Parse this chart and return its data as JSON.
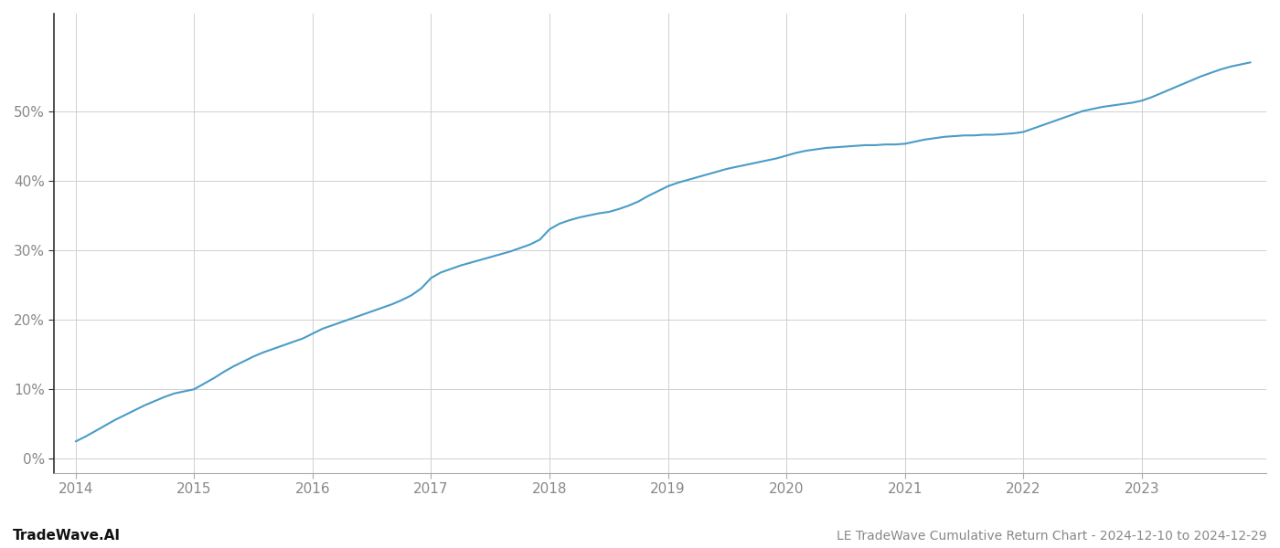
{
  "title": "LE TradeWave Cumulative Return Chart - 2024-12-10 to 2024-12-29",
  "watermark": "TradeWave.AI",
  "line_color": "#4a9cc7",
  "background_color": "#ffffff",
  "grid_color": "#d0d0d0",
  "x_values": [
    2014.0,
    2014.083,
    2014.167,
    2014.25,
    2014.333,
    2014.417,
    2014.5,
    2014.583,
    2014.667,
    2014.75,
    2014.833,
    2014.917,
    2015.0,
    2015.083,
    2015.167,
    2015.25,
    2015.333,
    2015.417,
    2015.5,
    2015.583,
    2015.667,
    2015.75,
    2015.833,
    2015.917,
    2016.0,
    2016.083,
    2016.167,
    2016.25,
    2016.333,
    2016.417,
    2016.5,
    2016.583,
    2016.667,
    2016.75,
    2016.833,
    2016.917,
    2017.0,
    2017.083,
    2017.167,
    2017.25,
    2017.333,
    2017.417,
    2017.5,
    2017.583,
    2017.667,
    2017.75,
    2017.833,
    2017.917,
    2018.0,
    2018.083,
    2018.167,
    2018.25,
    2018.333,
    2018.417,
    2018.5,
    2018.583,
    2018.667,
    2018.75,
    2018.833,
    2018.917,
    2019.0,
    2019.083,
    2019.167,
    2019.25,
    2019.333,
    2019.417,
    2019.5,
    2019.583,
    2019.667,
    2019.75,
    2019.833,
    2019.917,
    2020.0,
    2020.083,
    2020.167,
    2020.25,
    2020.333,
    2020.417,
    2020.5,
    2020.583,
    2020.667,
    2020.75,
    2020.833,
    2020.917,
    2021.0,
    2021.083,
    2021.167,
    2021.25,
    2021.333,
    2021.417,
    2021.5,
    2021.583,
    2021.667,
    2021.75,
    2021.833,
    2021.917,
    2022.0,
    2022.083,
    2022.167,
    2022.25,
    2022.333,
    2022.417,
    2022.5,
    2022.583,
    2022.667,
    2022.75,
    2022.833,
    2022.917,
    2023.0,
    2023.083,
    2023.167,
    2023.25,
    2023.333,
    2023.417,
    2023.5,
    2023.583,
    2023.667,
    2023.75,
    2023.833,
    2023.917
  ],
  "y_values": [
    2.5,
    3.2,
    4.0,
    4.8,
    5.6,
    6.3,
    7.0,
    7.7,
    8.3,
    8.9,
    9.4,
    9.7,
    10.0,
    10.8,
    11.6,
    12.5,
    13.3,
    14.0,
    14.7,
    15.3,
    15.8,
    16.3,
    16.8,
    17.3,
    18.0,
    18.7,
    19.2,
    19.7,
    20.2,
    20.7,
    21.2,
    21.7,
    22.2,
    22.8,
    23.5,
    24.5,
    26.0,
    26.8,
    27.3,
    27.8,
    28.2,
    28.6,
    29.0,
    29.4,
    29.8,
    30.3,
    30.8,
    31.5,
    33.0,
    33.8,
    34.3,
    34.7,
    35.0,
    35.3,
    35.5,
    35.9,
    36.4,
    37.0,
    37.8,
    38.5,
    39.2,
    39.7,
    40.1,
    40.5,
    40.9,
    41.3,
    41.7,
    42.0,
    42.3,
    42.6,
    42.9,
    43.2,
    43.6,
    44.0,
    44.3,
    44.5,
    44.7,
    44.8,
    44.9,
    45.0,
    45.1,
    45.1,
    45.2,
    45.2,
    45.3,
    45.6,
    45.9,
    46.1,
    46.3,
    46.4,
    46.5,
    46.5,
    46.6,
    46.6,
    46.7,
    46.8,
    47.0,
    47.5,
    48.0,
    48.5,
    49.0,
    49.5,
    50.0,
    50.3,
    50.6,
    50.8,
    51.0,
    51.2,
    51.5,
    52.0,
    52.6,
    53.2,
    53.8,
    54.4,
    55.0,
    55.5,
    56.0,
    56.4,
    56.7,
    57.0
  ],
  "xlim": [
    2013.82,
    2024.05
  ],
  "ylim": [
    -2,
    64
  ],
  "xtick_labels": [
    "2014",
    "2015",
    "2016",
    "2017",
    "2018",
    "2019",
    "2020",
    "2021",
    "2022",
    "2023"
  ],
  "xtick_positions": [
    2014,
    2015,
    2016,
    2017,
    2018,
    2019,
    2020,
    2021,
    2022,
    2023
  ],
  "ytick_values": [
    0,
    10,
    20,
    30,
    40,
    50
  ],
  "line_width": 1.5,
  "title_fontsize": 10,
  "watermark_fontsize": 11,
  "tick_fontsize": 11,
  "tick_color": "#888888",
  "spine_color": "#aaaaaa",
  "left_spine_color": "#333333"
}
